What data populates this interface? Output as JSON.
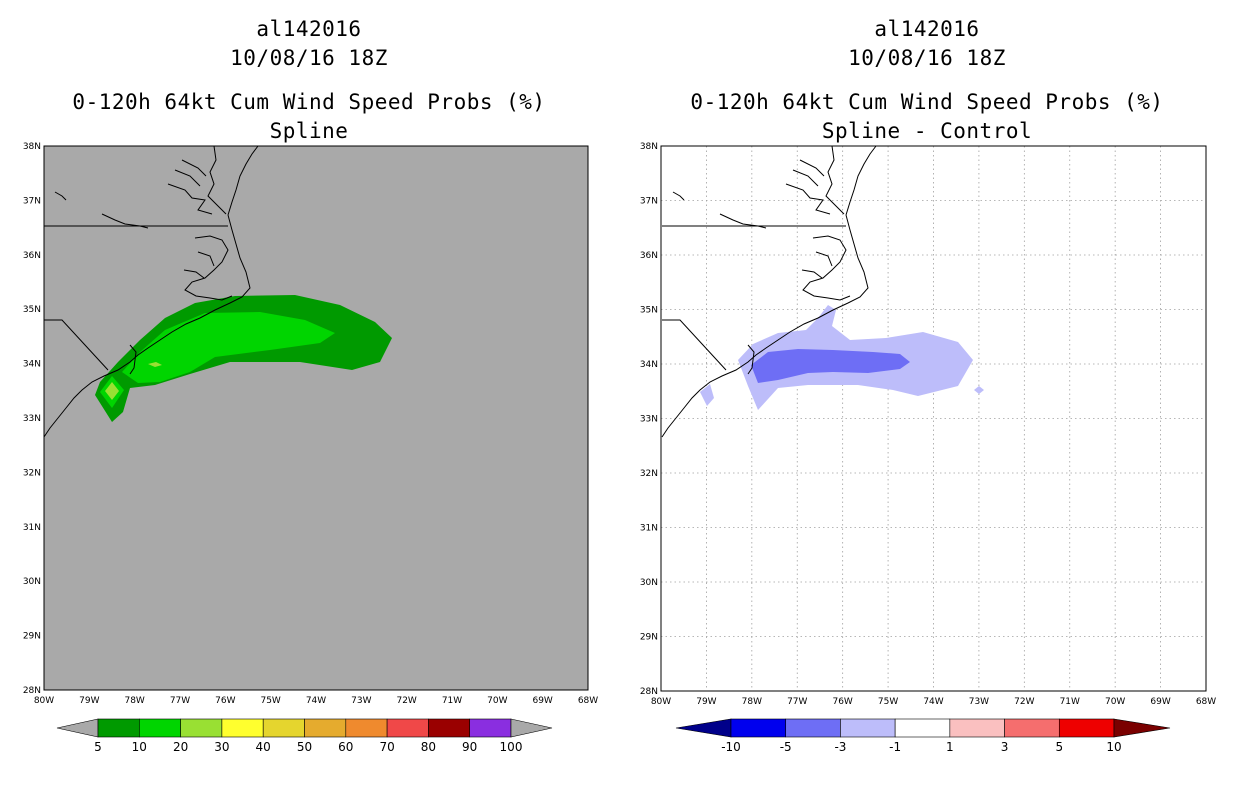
{
  "left_panel": {
    "storm_id": "al142016",
    "datetime": "10/08/16 18Z",
    "product": "0-120h 64kt Cum Wind Speed Probs (%)",
    "subtitle": "Spline",
    "background_color": "#a9a9a9",
    "colorbar": {
      "labels": [
        "5",
        "10",
        "20",
        "30",
        "40",
        "50",
        "60",
        "70",
        "80",
        "90",
        "100"
      ],
      "colors": [
        "#009a00",
        "#00d500",
        "#99e033",
        "#ffff2e",
        "#e5d52e",
        "#e5ab2e",
        "#ef8a2e",
        "#f04848",
        "#9a0000",
        "#8a2ee0"
      ],
      "end_color": "#a9a9a9"
    }
  },
  "right_panel": {
    "storm_id": "al142016",
    "datetime": "10/08/16 18Z",
    "product": "0-120h 64kt Cum Wind Speed Probs (%)",
    "subtitle": "Spline - Control",
    "background_color": "#ffffff",
    "colorbar": {
      "labels": [
        "-10",
        "-5",
        "-3",
        "-1",
        "1",
        "3",
        "5",
        "10"
      ],
      "colors": [
        "#0000ee",
        "#6e6ef5",
        "#bdbdfa",
        "#ffffff",
        "#fac0c0",
        "#f56e6e",
        "#ee0000"
      ],
      "left_end_color": "#00008a",
      "right_end_color": "#7a0000"
    }
  },
  "lat_labels": [
    "38N",
    "37N",
    "36N",
    "35N",
    "34N",
    "33N",
    "32N",
    "31N",
    "30N",
    "29N",
    "28N"
  ],
  "lon_labels": [
    "80W",
    "79W",
    "78W",
    "77W",
    "76W",
    "75W",
    "74W",
    "73W",
    "72W",
    "71W",
    "70W",
    "69W",
    "68W"
  ],
  "colors": {
    "prob_5": "#009a00",
    "prob_10": "#00d500",
    "prob_20": "#99e033",
    "prob_30": "#ffff2e",
    "diff_neg5": "#6e6ef5",
    "diff_neg3": "#bdbdfa",
    "coast": "#000000",
    "grid": "#a0a0a0"
  }
}
